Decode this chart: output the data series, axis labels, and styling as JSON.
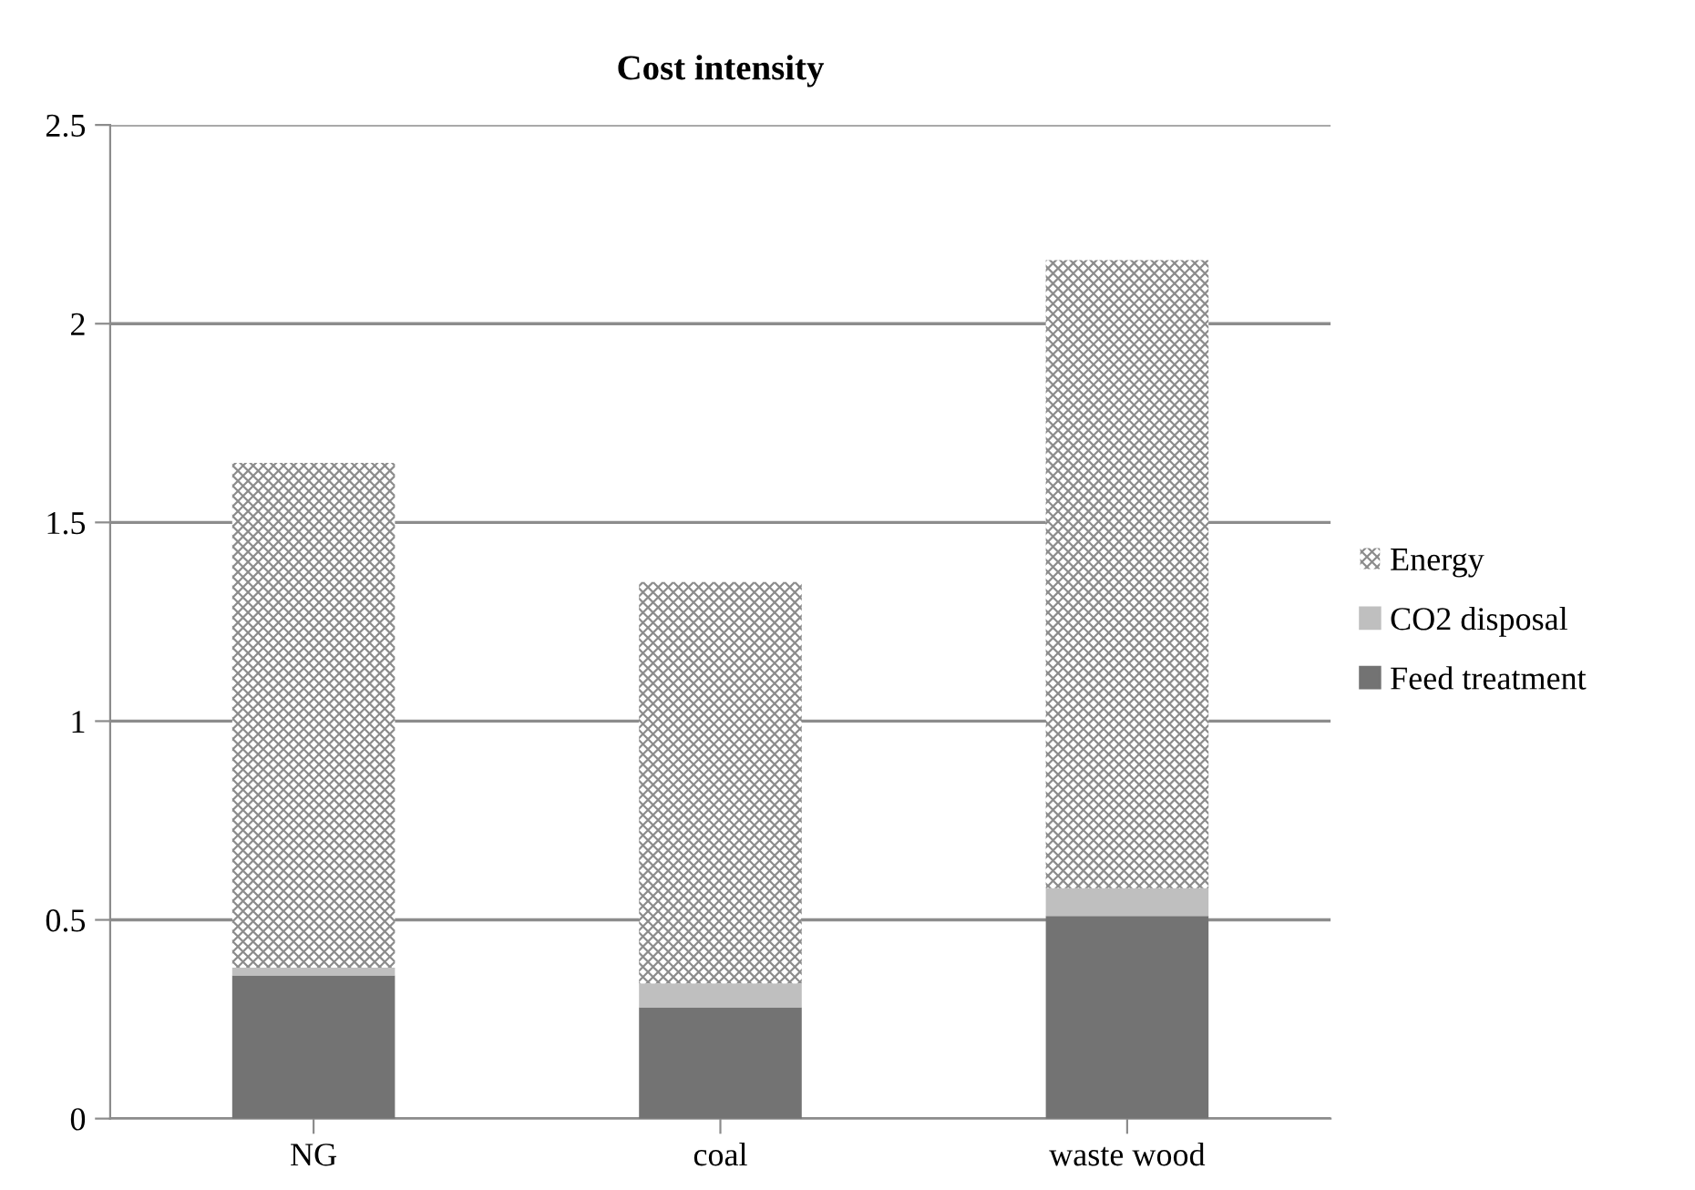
{
  "chart_data": {
    "type": "bar",
    "title": "Cost intensity",
    "stacked": true,
    "categories": [
      "NG",
      "coal",
      "waste wood"
    ],
    "series": [
      {
        "name": "Feed treatment",
        "color": "#737373",
        "values": [
          0.36,
          0.28,
          0.51
        ]
      },
      {
        "name": "CO2 disposal",
        "color": "#bfbfbf",
        "values": [
          0.02,
          0.06,
          0.07
        ]
      },
      {
        "name": "Energy",
        "color": "#8c8c8c",
        "values": [
          1.27,
          1.01,
          1.58
        ]
      }
    ],
    "ylim": [
      0,
      2.5
    ],
    "yticks": [
      0,
      0.5,
      1,
      1.5,
      2,
      2.5
    ],
    "grid": "y",
    "legend": "right"
  }
}
